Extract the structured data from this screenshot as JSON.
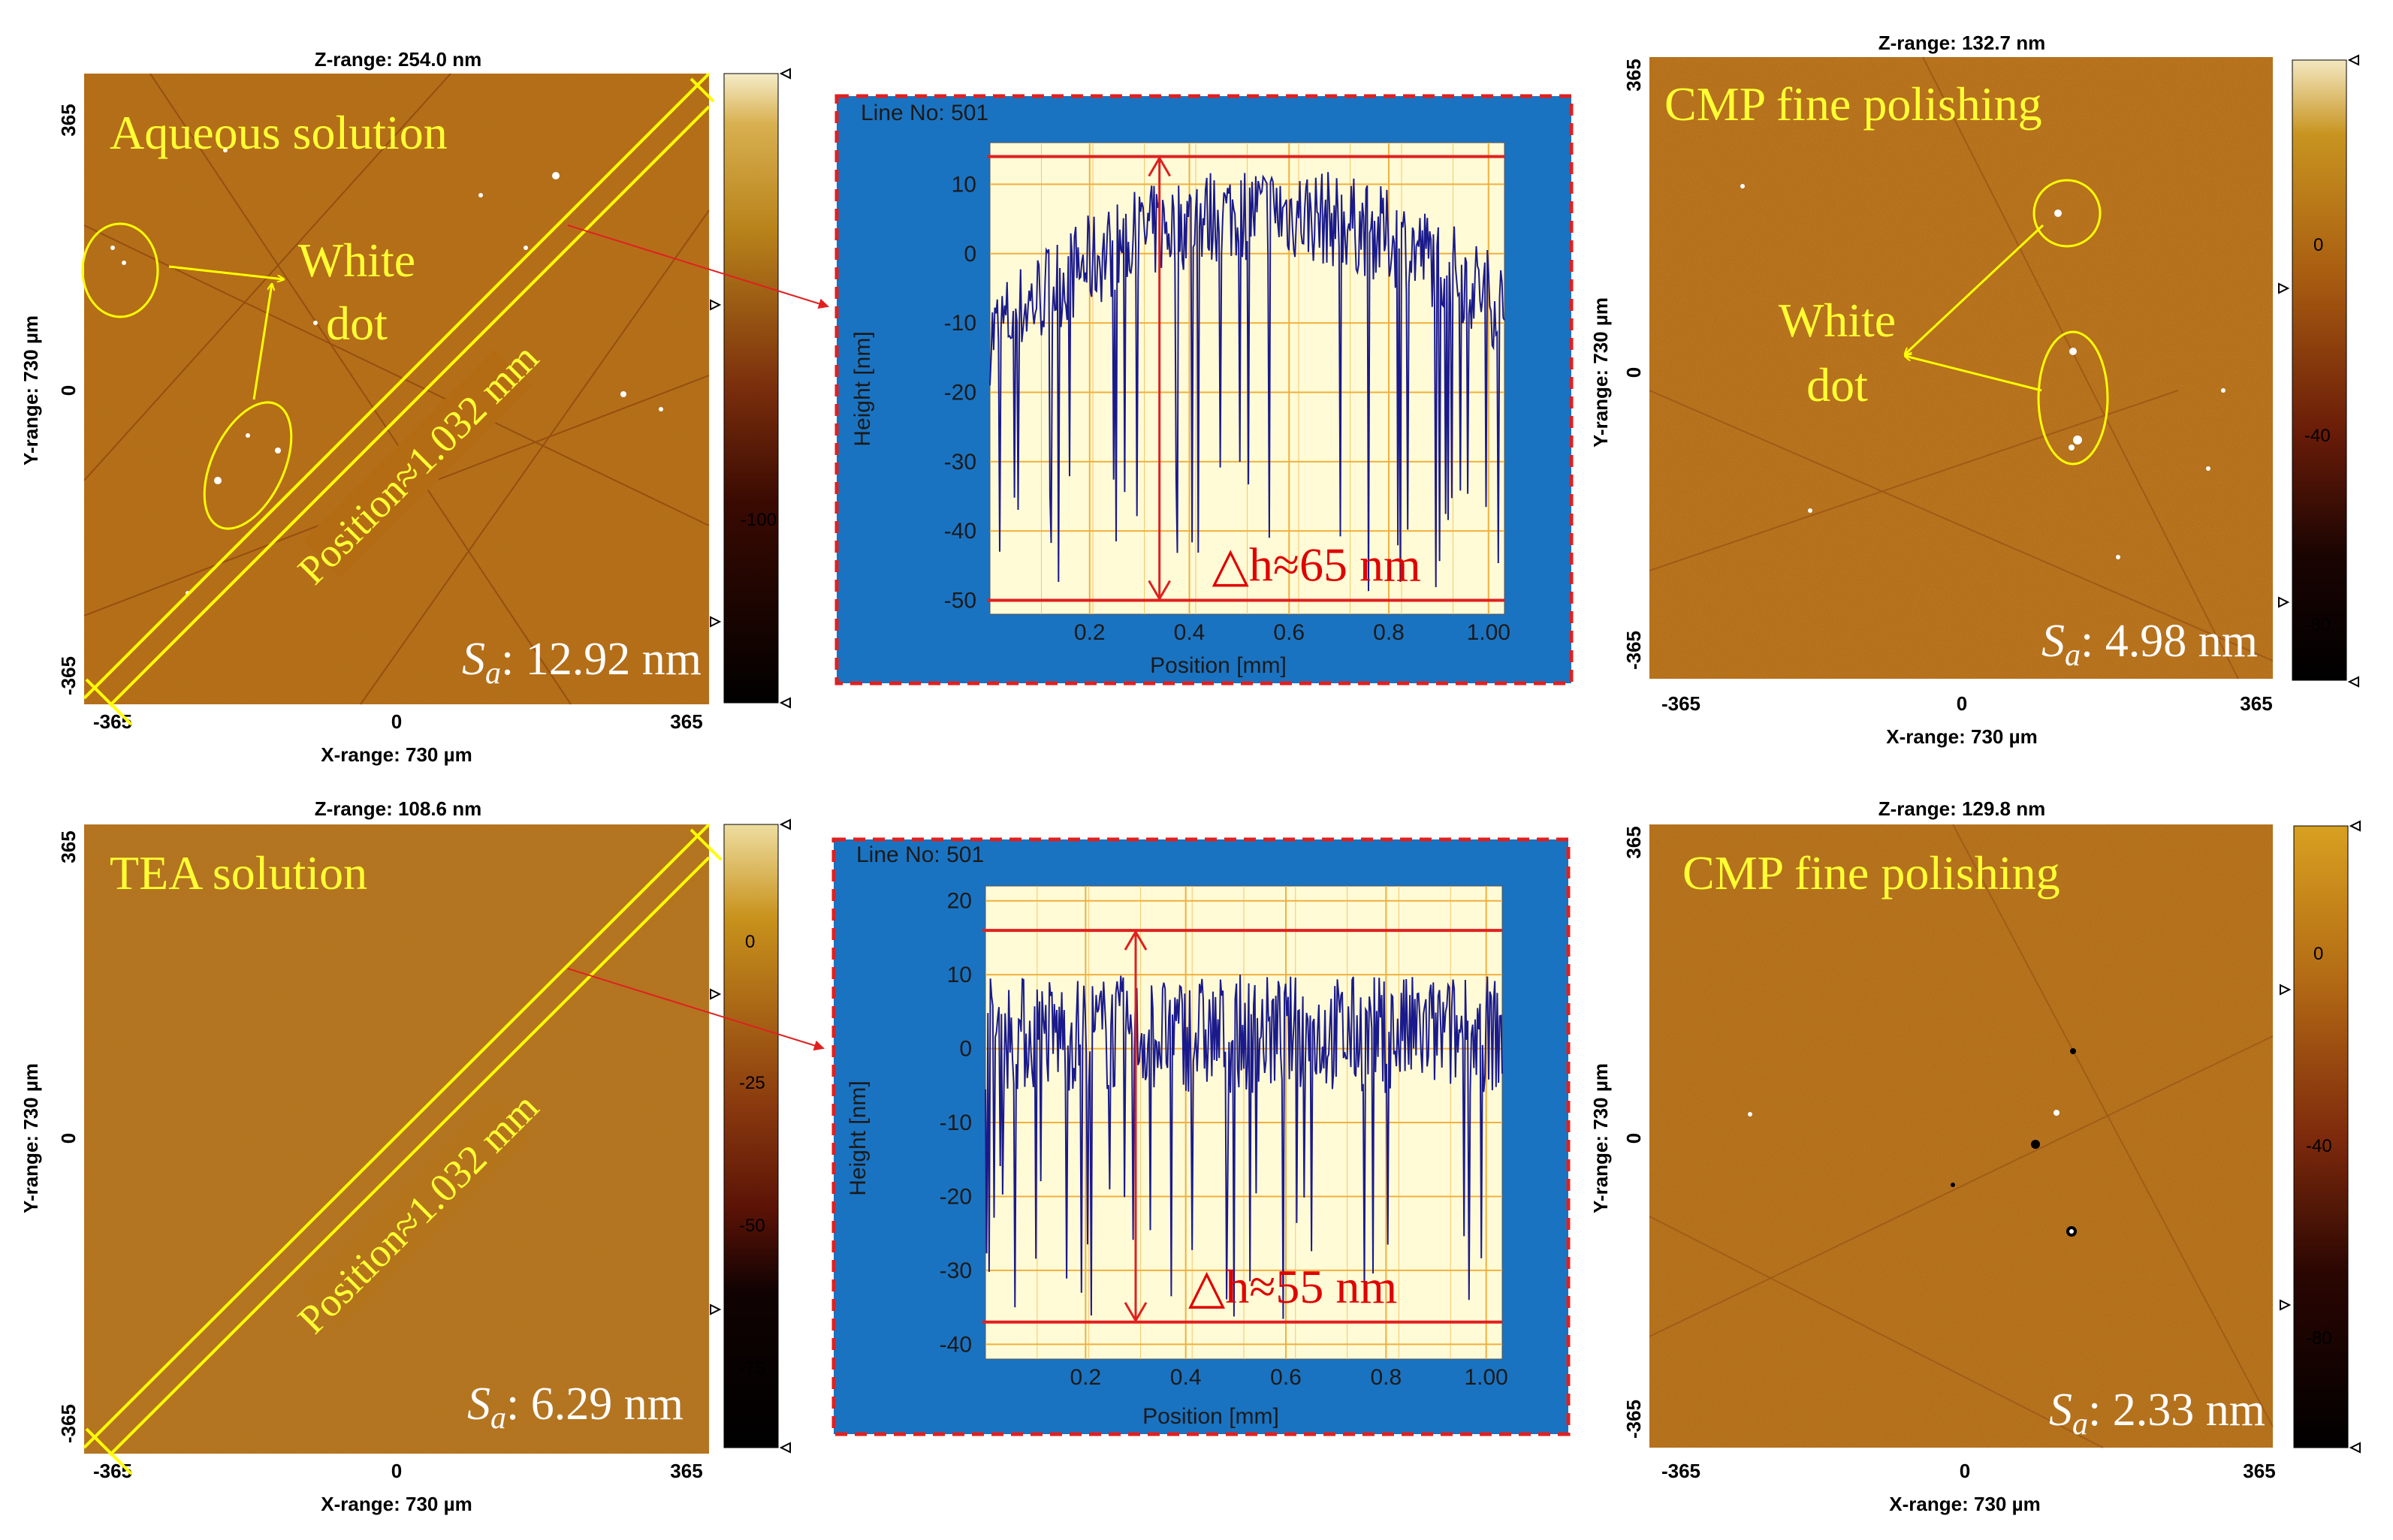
{
  "colors": {
    "afm_dark": "#a45b0c",
    "afm_light": "#c4781e",
    "annotation_yellow": "#ffff00",
    "profile_blue": "#1a73c1",
    "profile_plot_bg": "#fffbd6",
    "profile_line": "#1a1a8c",
    "guide_red": "#e02020"
  },
  "panels": [
    {
      "id": "a",
      "z_range": "Z-range:  254.0 nm",
      "x_range": "X-range:   730 µm",
      "y_range": "Y-range:   730 µm",
      "x_ticks": [
        "-365",
        "0",
        "365"
      ],
      "y_ticks": [
        "365",
        "0",
        "-365"
      ],
      "colorbar_ticks": [
        "-100"
      ],
      "title": "Aqueous solution",
      "callout": [
        "White",
        "dot"
      ],
      "position": "Position≈1.032 mm",
      "sa_symbol": "S",
      "sa_sub": "a",
      "sa_value": ": 12.92 nm"
    },
    {
      "id": "b",
      "z_range": "Z-range:  132.7 nm",
      "x_range": "X-range:   730 µm",
      "y_range": "Y-range:   730 µm",
      "x_ticks": [
        "-365",
        "0",
        "365"
      ],
      "y_ticks": [
        "365",
        "0",
        "-365"
      ],
      "colorbar_ticks": [
        "0",
        "-40",
        "-80"
      ],
      "title": "CMP fine polishing",
      "callout": [
        "White",
        "dot"
      ],
      "sa_symbol": "S",
      "sa_sub": "a",
      "sa_value": ": 4.98 nm"
    },
    {
      "id": "c",
      "z_range": "Z-range:  108.6 nm",
      "x_range": "X-range:   730 µm",
      "y_range": "Y-range:   730 µm",
      "x_ticks": [
        "-365",
        "0",
        "365"
      ],
      "y_ticks": [
        "365",
        "0",
        "-365"
      ],
      "colorbar_ticks": [
        "0",
        "-25",
        "-50",
        "-75"
      ],
      "title": "TEA solution",
      "position": "Position≈1.032 mm",
      "sa_symbol": "S",
      "sa_sub": "a",
      "sa_value": ": 6.29 nm"
    },
    {
      "id": "d",
      "z_range": "Z-range:  129.8 nm",
      "x_range": "X-range:   730 µm",
      "y_range": "Y-range:   730 µm",
      "x_ticks": [
        "-365",
        "0",
        "365"
      ],
      "y_ticks": [
        "365",
        "0",
        "-365"
      ],
      "colorbar_ticks": [
        "0",
        "-40",
        "-80"
      ],
      "title": "CMP fine polishing",
      "sa_symbol": "S",
      "sa_sub": "a",
      "sa_value": ": 2.33 nm"
    }
  ],
  "chart_data": [
    {
      "type": "line",
      "title": "Line No: 501",
      "xlabel": "Position [mm]",
      "ylabel": "Height [nm]",
      "xlim": [
        0,
        1.032
      ],
      "ylim": [
        -52,
        16
      ],
      "x_ticks": [
        0.2,
        0.4,
        0.6,
        0.8,
        1.0
      ],
      "x_tick_labels": [
        "0.2",
        "0.4",
        "0.6",
        "0.8",
        "1.00"
      ],
      "y_ticks": [
        10,
        0,
        -10,
        -20,
        -30,
        -40,
        -50
      ],
      "y_tick_labels": [
        "10",
        "0",
        "-10",
        "-20",
        "-30",
        "-40",
        "-50"
      ],
      "guide_lines": [
        14,
        -50
      ],
      "annotation": "△h≈65 nm",
      "annotation_x": 0.34,
      "profile_shape": "dome",
      "samples": 420,
      "dome_center": 0.55,
      "dome_top": 6,
      "dome_edge": -12,
      "noise": 7,
      "spike_depth": [
        -30,
        -49
      ]
    },
    {
      "type": "line",
      "title": "Line No: 501",
      "xlabel": "Position [mm]",
      "ylabel": "Height [nm]",
      "xlim": [
        0,
        1.032
      ],
      "ylim": [
        -42,
        22
      ],
      "x_ticks": [
        0.2,
        0.4,
        0.6,
        0.8,
        1.0
      ],
      "x_tick_labels": [
        "0.2",
        "0.4",
        "0.6",
        "0.8",
        "1.00"
      ],
      "y_ticks": [
        20,
        10,
        0,
        -10,
        -20,
        -30,
        -40
      ],
      "y_tick_labels": [
        "20",
        "10",
        "0",
        "-10",
        "-20",
        "-30",
        "-40"
      ],
      "guide_lines": [
        16,
        -37
      ],
      "annotation": "△h≈55 nm",
      "annotation_x": 0.3,
      "profile_shape": "flat",
      "samples": 420,
      "flat_level": 2,
      "noise": 8,
      "spike_depth": [
        -15,
        -37
      ]
    }
  ]
}
